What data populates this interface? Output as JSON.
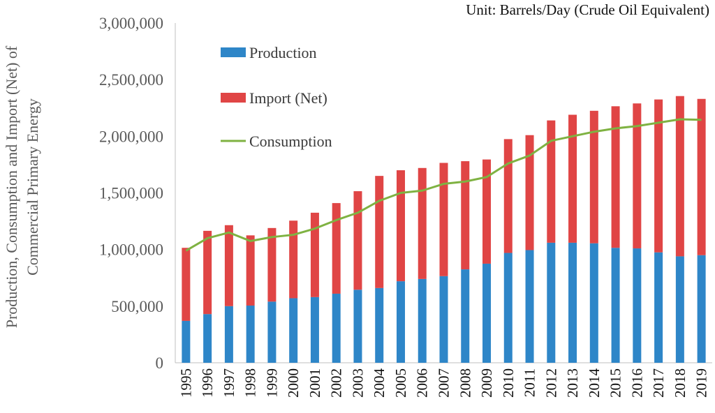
{
  "chart_data": {
    "type": "bar",
    "stacked": true,
    "unit_note": "Unit: Barrels/Day (Crude Oil Equivalent)",
    "ylabel_line1": "Production, Consumption and Import (Net) of",
    "ylabel_line2": "Commercial Primary Energy",
    "ylim": [
      0,
      3000000
    ],
    "yticks": [
      0,
      500000,
      1000000,
      1500000,
      2000000,
      2500000,
      3000000
    ],
    "ytick_labels": [
      "0",
      "500,000",
      "1,000,000",
      "1,500,000",
      "2,000,000",
      "2,500,000",
      "3,000,000"
    ],
    "grid": false,
    "legend_position": "top-left",
    "categories": [
      "1995",
      "1996",
      "1997",
      "1998",
      "1999",
      "2000",
      "2001",
      "2002",
      "2003",
      "2004",
      "2005",
      "2006",
      "2007",
      "2008",
      "2009",
      "2010",
      "2011",
      "2012",
      "2013",
      "2014",
      "2015",
      "2016",
      "2017",
      "2018",
      "2019"
    ],
    "series": [
      {
        "name": "Production",
        "kind": "bar",
        "color": "#2E86C8",
        "values": [
          370000,
          430000,
          500000,
          505000,
          540000,
          570000,
          580000,
          610000,
          645000,
          660000,
          720000,
          740000,
          765000,
          825000,
          875000,
          970000,
          995000,
          1060000,
          1060000,
          1055000,
          1015000,
          1010000,
          975000,
          940000,
          950000
        ]
      },
      {
        "name": "Import (Net)",
        "kind": "bar",
        "color": "#E04545",
        "values": [
          645000,
          735000,
          715000,
          620000,
          650000,
          685000,
          745000,
          800000,
          870000,
          990000,
          980000,
          980000,
          1000000,
          955000,
          920000,
          1005000,
          1015000,
          1080000,
          1130000,
          1170000,
          1250000,
          1280000,
          1350000,
          1415000,
          1380000
        ]
      },
      {
        "name": "Consumption",
        "kind": "line",
        "color": "#7FB242",
        "values": [
          990000,
          1100000,
          1150000,
          1075000,
          1110000,
          1130000,
          1185000,
          1260000,
          1325000,
          1430000,
          1500000,
          1520000,
          1580000,
          1600000,
          1640000,
          1760000,
          1830000,
          1960000,
          2000000,
          2040000,
          2070000,
          2090000,
          2120000,
          2150000,
          2145000
        ]
      }
    ]
  }
}
